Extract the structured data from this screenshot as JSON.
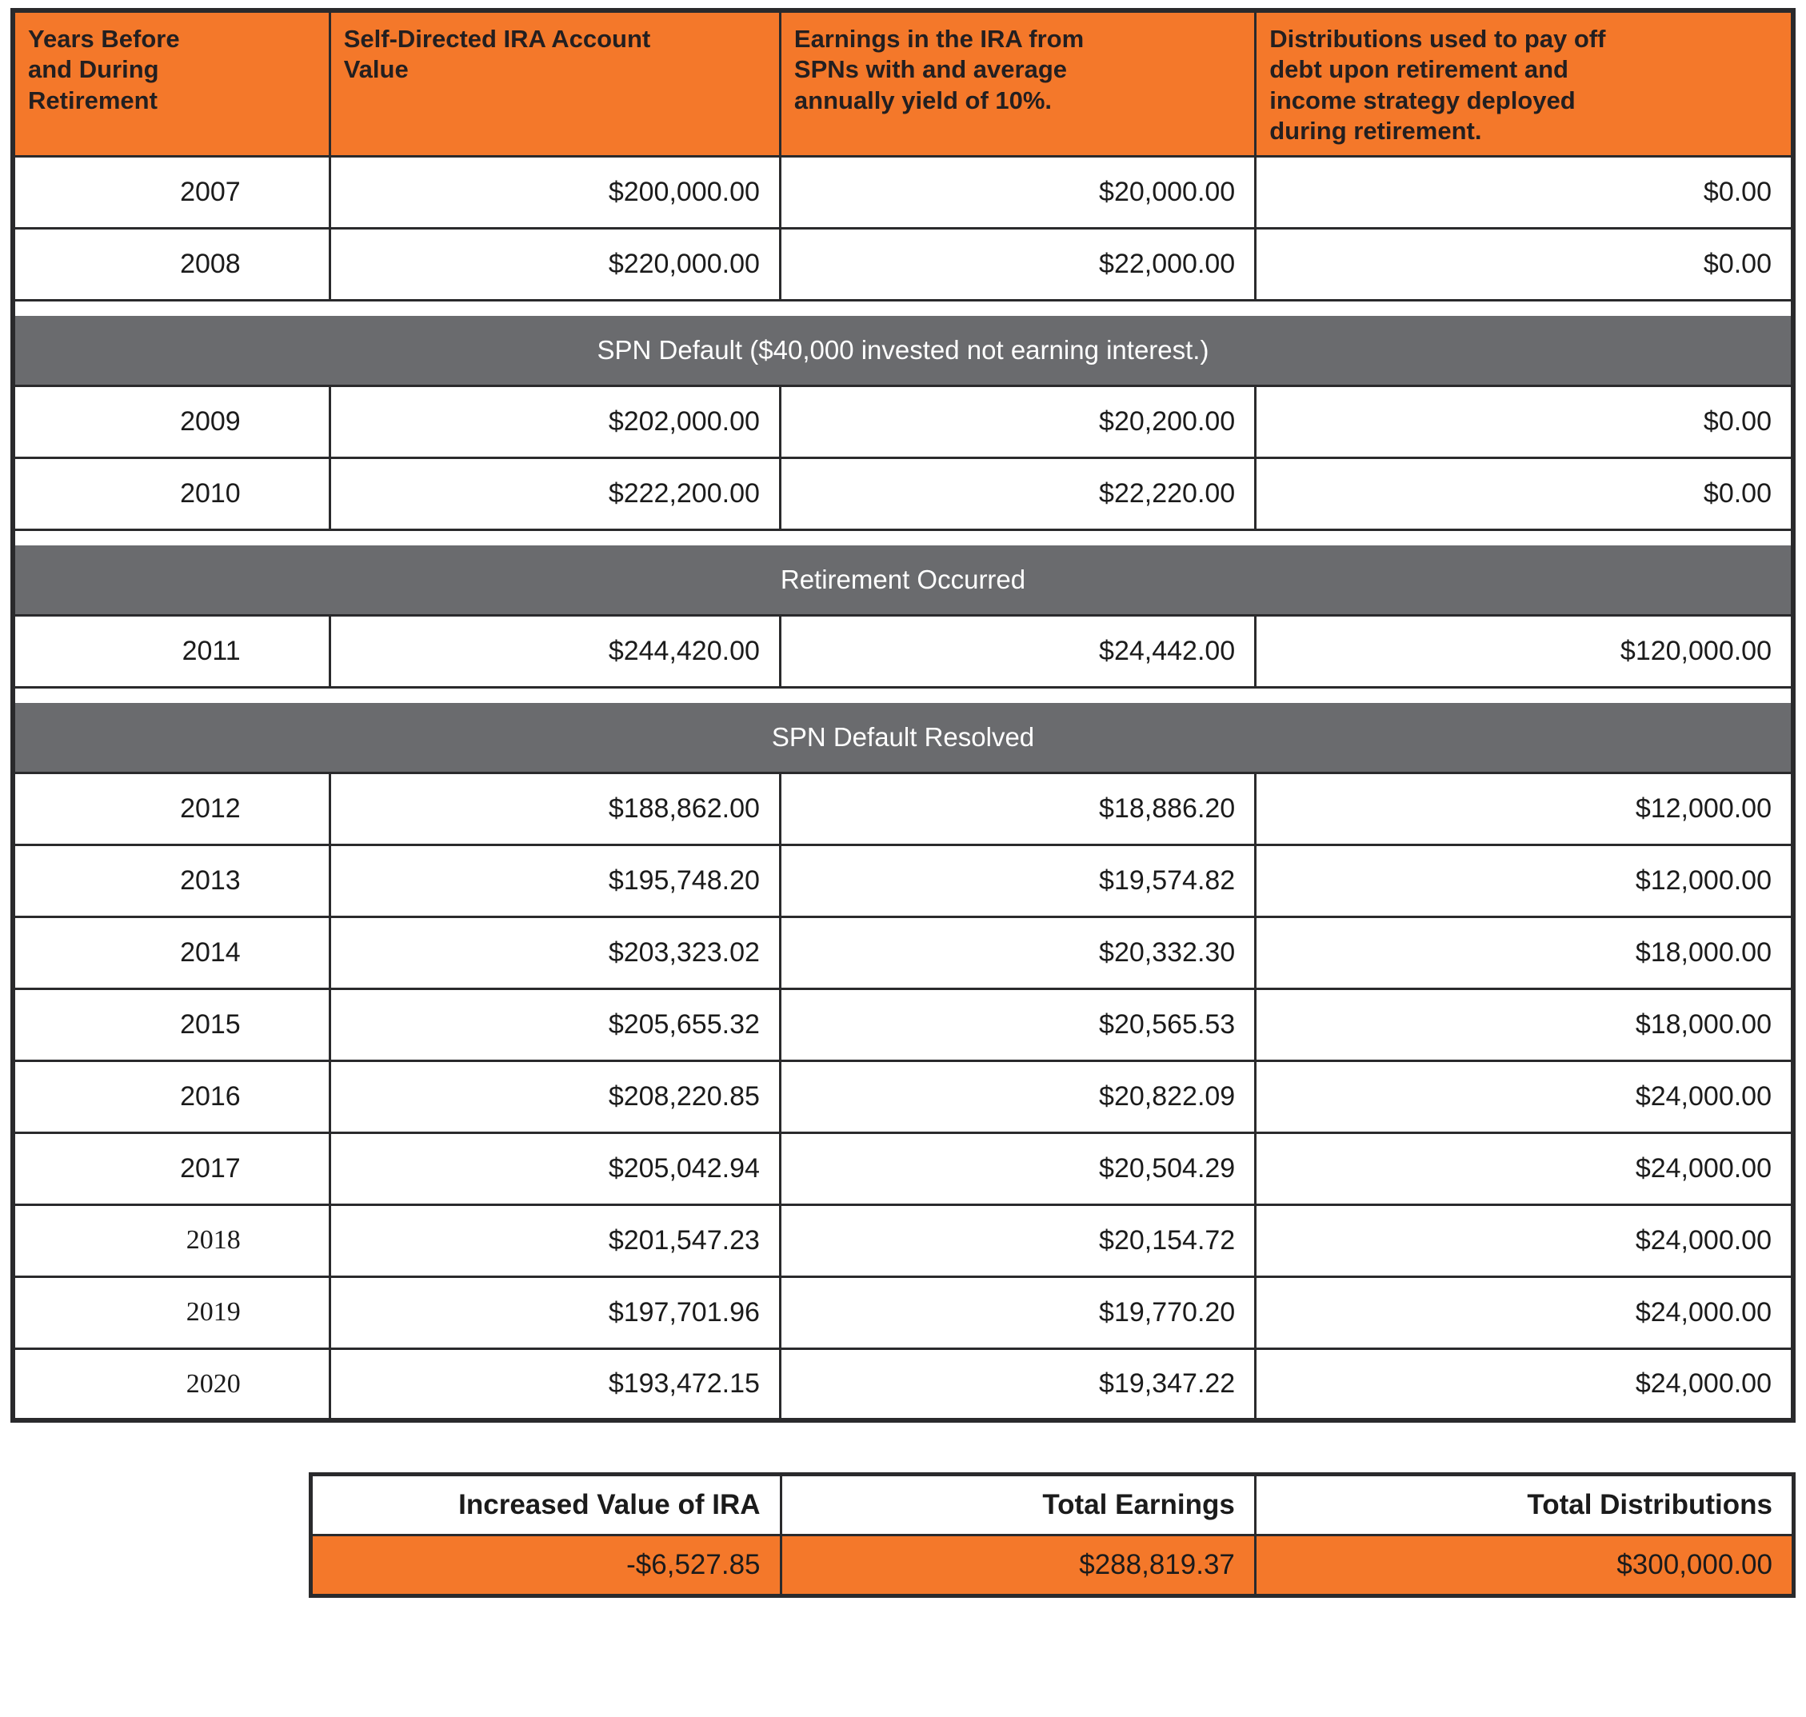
{
  "colors": {
    "header_orange": "#F4782A",
    "banner_gray": "#6A6B6E",
    "border_dark": "#2A2A2C",
    "header_text": "#231F20",
    "banner_text": "#FFFFFF"
  },
  "display": {
    "header_lines": [
      "Years Before\nand During\nRetirement",
      "Self-Directed IRA Account\nValue",
      "Earnings in the IRA from\nSPNs with and average\nannually yield of 10%.",
      "Distributions used to pay off\ndebt upon retirement and\nincome strategy deployed\nduring retirement."
    ],
    "serif_years": [
      "2018",
      "2019",
      "2020"
    ]
  },
  "chart_data": {
    "type": "table",
    "columns": [
      "Years Before and During Retirement",
      "Self-Directed IRA Account Value",
      "Earnings in the IRA from SPNs with and average annually yield of 10%.",
      "Distributions used to pay off debt upon retirement and income strategy deployed during retirement."
    ],
    "rows": [
      {
        "year": "2007",
        "account_value": "$200,000.00",
        "earnings": "$20,000.00",
        "distributions": "$0.00"
      },
      {
        "year": "2008",
        "account_value": "$220,000.00",
        "earnings": "$22,000.00",
        "distributions": "$0.00"
      },
      {
        "banner": "SPN Default ($40,000 invested not earning interest.)"
      },
      {
        "year": "2009",
        "account_value": "$202,000.00",
        "earnings": "$20,200.00",
        "distributions": "$0.00"
      },
      {
        "year": "2010",
        "account_value": "$222,200.00",
        "earnings": "$22,220.00",
        "distributions": "$0.00"
      },
      {
        "banner": "Retirement Occurred"
      },
      {
        "year": "2011",
        "account_value": "$244,420.00",
        "earnings": "$24,442.00",
        "distributions": "$120,000.00"
      },
      {
        "banner": "SPN Default Resolved"
      },
      {
        "year": "2012",
        "account_value": "$188,862.00",
        "earnings": "$18,886.20",
        "distributions": "$12,000.00"
      },
      {
        "year": "2013",
        "account_value": "$195,748.20",
        "earnings": "$19,574.82",
        "distributions": "$12,000.00"
      },
      {
        "year": "2014",
        "account_value": "$203,323.02",
        "earnings": "$20,332.30",
        "distributions": "$18,000.00"
      },
      {
        "year": "2015",
        "account_value": "$205,655.32",
        "earnings": "$20,565.53",
        "distributions": "$18,000.00"
      },
      {
        "year": "2016",
        "account_value": "$208,220.85",
        "earnings": "$20,822.09",
        "distributions": "$24,000.00"
      },
      {
        "year": "2017",
        "account_value": "$205,042.94",
        "earnings": "$20,504.29",
        "distributions": "$24,000.00"
      },
      {
        "year": "2018",
        "account_value": "$201,547.23",
        "earnings": "$20,154.72",
        "distributions": "$24,000.00"
      },
      {
        "year": "2019",
        "account_value": "$197,701.96",
        "earnings": "$19,770.20",
        "distributions": "$24,000.00"
      },
      {
        "year": "2020",
        "account_value": "$193,472.15",
        "earnings": "$19,347.22",
        "distributions": "$24,000.00"
      }
    ],
    "summary": {
      "headers": [
        "Increased Value of IRA",
        "Total Earnings",
        "Total Distributions"
      ],
      "values": [
        "-$6,527.85",
        "$288,819.37",
        "$300,000.00"
      ]
    }
  }
}
